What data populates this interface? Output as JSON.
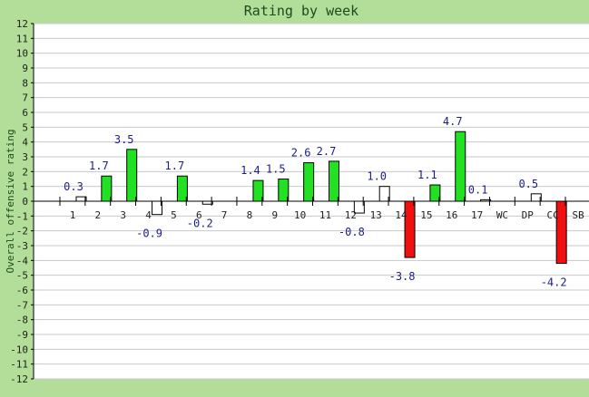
{
  "chart_data": {
    "type": "bar",
    "title": "Rating by week",
    "xlabel": "",
    "ylabel": "Overall offensive rating",
    "ylim": [
      -12,
      12
    ],
    "yticks": [
      12,
      11,
      10,
      9,
      8,
      7,
      6,
      5,
      4,
      3,
      2,
      1,
      0,
      -1,
      -2,
      -3,
      -4,
      -5,
      -6,
      -7,
      -8,
      -9,
      -10,
      -11,
      -12
    ],
    "grid": true,
    "categories": [
      "1",
      "2",
      "3",
      "4",
      "5",
      "6",
      "7",
      "8",
      "9",
      "10",
      "11",
      "12",
      "13",
      "14",
      "15",
      "16",
      "17",
      "WC",
      "DP",
      "CC",
      "SB"
    ],
    "values": [
      0.3,
      1.7,
      3.5,
      -0.9,
      1.7,
      -0.2,
      null,
      1.4,
      1.5,
      2.6,
      2.7,
      -0.8,
      1.0,
      -3.8,
      1.1,
      4.7,
      0.1,
      null,
      0.5,
      -4.2,
      null
    ],
    "data_labels": [
      "0.3",
      "1.7",
      "3.5",
      "-0.9",
      "1.7",
      "-0.2",
      "",
      "1.4",
      "1.5",
      "2.6",
      "2.7",
      "-0.8",
      "1.0",
      "-3.8",
      "1.1",
      "4.7",
      "0.1",
      "",
      "0.5",
      "-4.2",
      ""
    ],
    "bar_colors": [
      "white",
      "green",
      "green",
      "white",
      "green",
      "white",
      "",
      "green",
      "green",
      "green",
      "green",
      "white",
      "white",
      "red",
      "green",
      "green",
      "white",
      "",
      "white",
      "red",
      ""
    ],
    "colors": {
      "background": "#b3de9a",
      "plot_background": "#ffffff",
      "gridline": "#c8c8c8",
      "axis": "#000000",
      "title_text": "#1f4a1f",
      "ylabel_text": "#1f4a1f",
      "value_label_text": "#1c1c8c",
      "green": "#22e022",
      "red": "#f01010",
      "white": "#ffffff"
    }
  }
}
